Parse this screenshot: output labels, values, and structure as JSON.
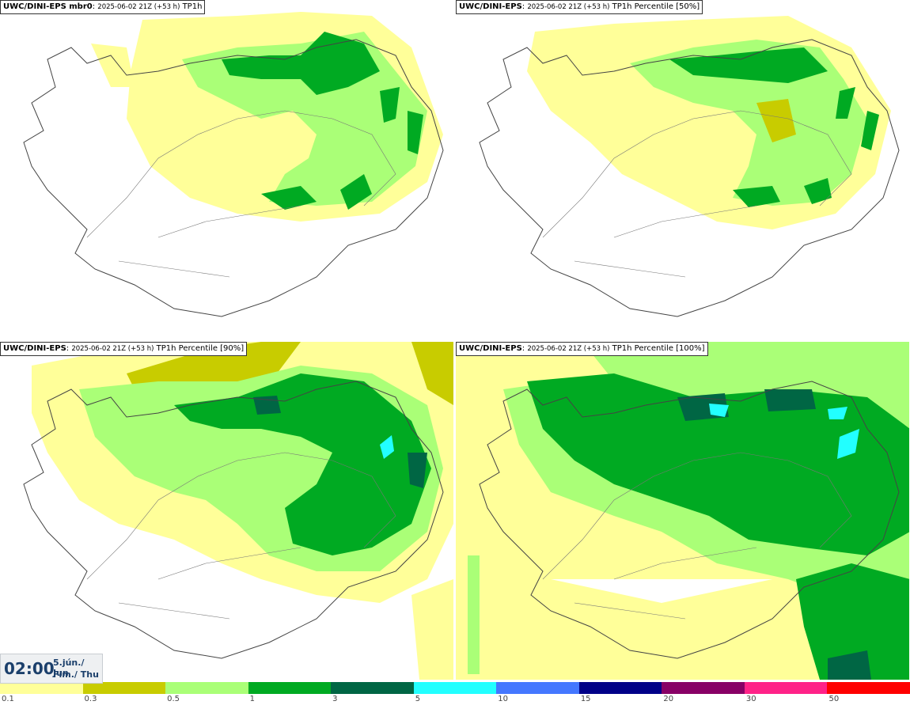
{
  "panels": [
    {
      "model": "UWC/DINI-EPS mbr0",
      "meta": "2025-06-02 21Z (+53 h)",
      "variable": "TP1h"
    },
    {
      "model": "UWC/DINI-EPS",
      "meta": "2025-06-02 21Z (+53 h)",
      "variable": "TP1h Percentile [50%]"
    },
    {
      "model": "UWC/DINI-EPS",
      "meta": "2025-06-02 21Z (+53 h)",
      "variable": "TP1h Percentile [90%]"
    },
    {
      "model": "UWC/DINI-EPS",
      "meta": "2025-06-02 21Z (+53 h)",
      "variable": "TP1h Percentile [100%]"
    }
  ],
  "time": {
    "clock": "02:00",
    "date_line1": "5.jún./ Jun",
    "date_line2": "Fim./ Thu"
  },
  "legend": {
    "labels": [
      "0.1",
      "0.3",
      "0.5",
      "1",
      "3",
      "5",
      "10",
      "15",
      "20",
      "30",
      "50"
    ],
    "colors": [
      "#ffff99",
      "#c8cc00",
      "#aaff77",
      "#00aa22",
      "#006644",
      "#22ffff",
      "#4477ff",
      "#000088",
      "#880066",
      "#ff2288",
      "#ff0000"
    ]
  },
  "map_colors": {
    "light_yellow": "#ffff99",
    "olive": "#c8cc00",
    "light_green": "#aaff77",
    "green": "#00aa22",
    "dark_green": "#006644",
    "cyan": "#22ffff",
    "coast": "#444444"
  }
}
